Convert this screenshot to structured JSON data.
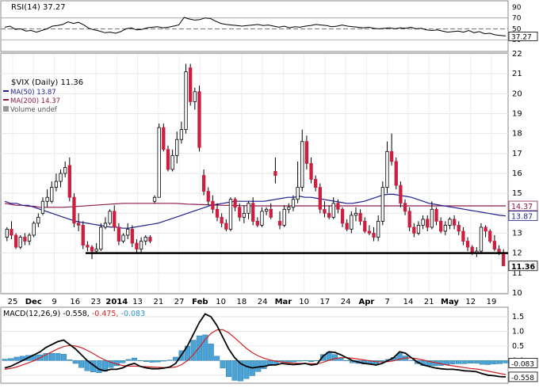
{
  "chart_data": [
    {
      "panel": "rsi",
      "type": "line",
      "label": "RSI(14) 37.27",
      "ticks": [
        "90",
        "70",
        "50",
        "30"
      ],
      "last_label": "37.27",
      "ylim": [
        10,
        100
      ],
      "levels": [
        70,
        50,
        30
      ],
      "values": [
        53,
        55,
        49,
        50,
        46,
        47,
        44,
        47,
        50,
        55,
        56,
        58,
        63,
        60,
        62,
        57,
        51,
        48,
        46,
        43,
        44,
        42,
        45,
        50,
        52,
        48,
        49,
        52,
        53,
        54,
        52,
        53,
        55,
        57,
        71,
        68,
        66,
        67,
        70,
        69,
        64,
        60,
        58,
        57,
        56,
        55,
        56,
        57,
        58,
        56,
        57,
        55,
        53,
        55,
        52,
        54,
        53,
        55,
        56,
        58,
        57,
        56,
        54,
        55,
        57,
        55,
        54,
        53,
        52,
        53,
        51,
        50,
        51,
        52,
        50,
        52,
        51,
        53,
        50,
        51,
        48,
        47,
        48,
        46,
        44,
        45,
        46,
        44,
        47,
        43,
        45,
        41,
        42,
        39,
        38,
        37
      ]
    },
    {
      "panel": "price",
      "type": "candlestick",
      "title": "$VIX (Daily) 11.36",
      "legend": [
        {
          "name": "MA(50) 13.87",
          "color": "#1f1f8f"
        },
        {
          "name": "MA(200) 14.37",
          "color": "#8b1a4a"
        },
        {
          "name": "Volume undef",
          "color": "#888888"
        }
      ],
      "y_ticks": [
        "10",
        "11",
        "12",
        "13",
        "14",
        "15",
        "16",
        "17",
        "18",
        "19",
        "20",
        "21",
        "22"
      ],
      "x_tick_labels": [
        "25",
        "Dec",
        "9",
        "16",
        "23",
        "2014",
        "13",
        "21",
        "27",
        "Feb",
        "10",
        "18",
        "24",
        "Mar",
        "10",
        "17",
        "24",
        "Apr",
        "7",
        "14",
        "21",
        "May",
        "12",
        "19"
      ],
      "ylim": [
        10,
        22
      ],
      "support_level": 12,
      "price_labels": [
        {
          "text": "14.37",
          "value": 14.37,
          "color": "#8b1a4a"
        },
        {
          "text": "13.87",
          "value": 13.87,
          "color": "#1f1f8f"
        },
        {
          "text": "11.36",
          "value": 11.36,
          "color": "#000000"
        }
      ],
      "ohlc": [
        [
          12.8,
          13.3,
          12.6,
          13.2
        ],
        [
          13.2,
          13.6,
          12.7,
          12.9
        ],
        [
          12.9,
          13.0,
          12.2,
          12.3
        ],
        [
          12.3,
          12.9,
          12.2,
          12.8
        ],
        [
          12.8,
          13.0,
          12.4,
          12.6
        ],
        [
          12.6,
          13.0,
          12.4,
          12.9
        ],
        [
          12.9,
          13.6,
          12.8,
          13.5
        ],
        [
          13.5,
          14.0,
          13.3,
          13.8
        ],
        [
          14.0,
          14.8,
          13.9,
          14.6
        ],
        [
          14.6,
          15.2,
          14.3,
          14.8
        ],
        [
          14.6,
          15.6,
          14.5,
          15.3
        ],
        [
          15.3,
          16.0,
          15.1,
          15.6
        ],
        [
          15.6,
          16.2,
          15.3,
          16.0
        ],
        [
          16.0,
          16.6,
          15.8,
          16.3
        ],
        [
          16.4,
          16.8,
          14.6,
          14.8
        ],
        [
          14.8,
          15.0,
          13.3,
          13.5
        ],
        [
          13.5,
          14.0,
          13.1,
          13.4
        ],
        [
          13.4,
          13.6,
          12.2,
          12.4
        ],
        [
          12.4,
          12.6,
          12.1,
          12.3
        ],
        [
          12.3,
          12.4,
          11.7,
          12.1
        ],
        [
          12.1,
          12.5,
          12.0,
          12.2
        ],
        [
          12.2,
          13.5,
          12.1,
          13.3
        ],
        [
          13.3,
          13.8,
          13.2,
          13.5
        ],
        [
          13.5,
          14.2,
          13.4,
          14.1
        ],
        [
          14.1,
          14.4,
          13.1,
          13.3
        ],
        [
          13.3,
          13.5,
          12.4,
          12.6
        ],
        [
          12.6,
          13.0,
          12.5,
          12.9
        ],
        [
          12.9,
          13.5,
          12.7,
          13.2
        ],
        [
          13.2,
          13.4,
          12.3,
          12.5
        ],
        [
          12.5,
          12.7,
          12.0,
          12.2
        ],
        [
          12.2,
          12.8,
          12.0,
          12.6
        ],
        [
          12.6,
          12.9,
          12.4,
          12.8
        ],
        [
          12.8,
          12.9,
          12.5,
          12.6
        ],
        [
          14.6,
          14.9,
          14.5,
          14.8
        ],
        [
          14.8,
          18.5,
          14.8,
          18.3
        ],
        [
          18.3,
          18.5,
          17.1,
          17.2
        ],
        [
          17.2,
          17.4,
          16.1,
          16.2
        ],
        [
          16.2,
          17.2,
          16.1,
          16.9
        ],
        [
          16.9,
          18.1,
          16.5,
          17.7
        ],
        [
          17.7,
          18.6,
          17.5,
          18.2
        ],
        [
          18.2,
          21.5,
          18.0,
          21.1
        ],
        [
          21.3,
          21.5,
          19.4,
          19.6
        ],
        [
          19.6,
          20.3,
          19.2,
          20.1
        ],
        [
          20.1,
          20.4,
          17.1,
          17.3
        ],
        [
          15.9,
          16.2,
          14.9,
          15.1
        ],
        [
          15.1,
          15.3,
          14.4,
          14.6
        ],
        [
          14.6,
          14.9,
          14.0,
          14.2
        ],
        [
          14.2,
          14.5,
          13.6,
          13.8
        ],
        [
          13.8,
          14.0,
          13.3,
          13.5
        ],
        [
          13.5,
          13.7,
          13.1,
          13.2
        ],
        [
          13.2,
          14.8,
          13.1,
          14.7
        ],
        [
          14.7,
          14.8,
          14.1,
          14.3
        ],
        [
          14.3,
          14.5,
          13.6,
          13.8
        ],
        [
          13.8,
          14.4,
          13.5,
          14.0
        ],
        [
          14.0,
          14.6,
          13.7,
          14.5
        ],
        [
          14.5,
          14.8,
          13.4,
          13.6
        ],
        [
          13.6,
          13.8,
          13.3,
          13.4
        ],
        [
          13.4,
          14.3,
          13.3,
          14.1
        ],
        [
          14.1,
          14.3,
          13.9,
          14.2
        ],
        [
          14.2,
          14.5,
          13.7,
          13.8
        ],
        [
          16.1,
          16.8,
          15.5,
          15.9
        ],
        [
          13.6,
          14.1,
          13.2,
          13.4
        ],
        [
          13.4,
          14.4,
          13.3,
          14.2
        ],
        [
          14.2,
          14.5,
          14.0,
          14.3
        ],
        [
          14.3,
          14.9,
          14.1,
          14.7
        ],
        [
          14.7,
          16.6,
          14.5,
          15.3
        ],
        [
          15.3,
          18.2,
          15.1,
          17.6
        ],
        [
          17.6,
          17.9,
          16.2,
          16.5
        ],
        [
          16.5,
          16.8,
          15.5,
          15.7
        ],
        [
          15.7,
          15.9,
          15.1,
          15.3
        ],
        [
          15.3,
          15.5,
          14.0,
          14.2
        ],
        [
          14.2,
          14.6,
          13.8,
          14.0
        ],
        [
          14.0,
          14.4,
          13.7,
          13.8
        ],
        [
          13.8,
          14.8,
          13.7,
          14.5
        ],
        [
          14.5,
          14.7,
          14.0,
          14.2
        ],
        [
          14.2,
          14.3,
          13.3,
          13.5
        ],
        [
          13.5,
          13.7,
          13.1,
          13.2
        ],
        [
          13.2,
          14.1,
          13.0,
          13.9
        ],
        [
          13.9,
          14.3,
          13.6,
          14.0
        ],
        [
          14.0,
          14.2,
          13.4,
          13.6
        ],
        [
          13.6,
          13.8,
          13.0,
          13.1
        ],
        [
          13.1,
          13.4,
          12.9,
          13.0
        ],
        [
          13.0,
          13.3,
          12.6,
          12.8
        ],
        [
          12.8,
          13.9,
          12.6,
          13.6
        ],
        [
          13.6,
          15.6,
          13.4,
          15.3
        ],
        [
          15.3,
          17.6,
          15.0,
          17.1
        ],
        [
          17.1,
          18.0,
          16.4,
          16.6
        ],
        [
          16.6,
          16.8,
          15.2,
          15.4
        ],
        [
          15.4,
          15.6,
          14.3,
          14.5
        ],
        [
          14.5,
          14.7,
          13.9,
          14.1
        ],
        [
          14.1,
          14.3,
          13.1,
          13.3
        ],
        [
          13.3,
          13.5,
          12.8,
          13.0
        ],
        [
          13.0,
          13.6,
          12.9,
          13.4
        ],
        [
          13.4,
          13.9,
          13.2,
          13.7
        ],
        [
          13.7,
          13.9,
          13.1,
          13.3
        ],
        [
          13.3,
          14.6,
          13.2,
          14.2
        ],
        [
          14.2,
          14.3,
          13.4,
          13.6
        ],
        [
          13.6,
          13.8,
          13.0,
          13.1
        ],
        [
          13.1,
          13.6,
          12.9,
          13.4
        ],
        [
          13.4,
          13.8,
          13.2,
          13.7
        ],
        [
          13.7,
          13.9,
          13.2,
          13.4
        ],
        [
          13.4,
          13.6,
          12.9,
          13.1
        ],
        [
          13.1,
          13.3,
          12.4,
          12.6
        ],
        [
          12.6,
          12.8,
          12.1,
          12.3
        ],
        [
          12.3,
          12.4,
          11.9,
          12.0
        ],
        [
          12.0,
          12.3,
          11.8,
          12.1
        ],
        [
          12.1,
          13.5,
          12.0,
          13.3
        ],
        [
          13.3,
          13.4,
          12.8,
          13.1
        ],
        [
          13.1,
          13.2,
          12.5,
          12.6
        ],
        [
          12.6,
          12.9,
          12.1,
          12.2
        ],
        [
          12.2,
          12.4,
          11.9,
          12.0
        ],
        [
          12.0,
          12.2,
          11.4,
          11.36
        ]
      ],
      "ma50": [
        14.6,
        14.5,
        14.5,
        14.4,
        14.4,
        14.3,
        14.2,
        14.1,
        14.0,
        13.9,
        13.8,
        13.7,
        13.6,
        13.55,
        13.5,
        13.45,
        13.4,
        13.35,
        13.3,
        13.3,
        13.25,
        13.25,
        13.3,
        13.35,
        13.4,
        13.45,
        13.5,
        13.6,
        13.7,
        13.8,
        13.9,
        14.0,
        14.1,
        14.2,
        14.3,
        14.4,
        14.45,
        14.5,
        14.55,
        14.6,
        14.6,
        14.6,
        14.6,
        14.6,
        14.6,
        14.65,
        14.7,
        14.75,
        14.8,
        14.8,
        14.85,
        14.8,
        14.8,
        14.75,
        14.7,
        14.65,
        14.6,
        14.55,
        14.5,
        14.5,
        14.55,
        14.6,
        14.7,
        14.8,
        14.9,
        14.95,
        14.95,
        14.9,
        14.85,
        14.8,
        14.7,
        14.6,
        14.5,
        14.45,
        14.4,
        14.35,
        14.3,
        14.25,
        14.2,
        14.15,
        14.1,
        14.05,
        14.0,
        13.95,
        13.9,
        13.87
      ],
      "ma200": [
        14.5,
        14.45,
        14.4,
        14.4,
        14.35,
        14.35,
        14.3,
        14.3,
        14.3,
        14.3,
        14.3,
        14.32,
        14.34,
        14.36,
        14.38,
        14.4,
        14.42,
        14.44,
        14.46,
        14.48,
        14.5,
        14.5,
        14.5,
        14.5,
        14.5,
        14.5,
        14.5,
        14.5,
        14.5,
        14.5,
        14.48,
        14.46,
        14.45,
        14.44,
        14.43,
        14.42,
        14.41,
        14.4,
        14.4,
        14.39,
        14.38,
        14.38,
        14.37,
        14.37,
        14.37,
        14.37,
        14.37,
        14.37,
        14.37,
        14.37,
        14.37,
        14.37,
        14.37,
        14.37,
        14.37,
        14.37,
        14.37,
        14.37,
        14.37,
        14.37,
        14.37,
        14.37,
        14.37,
        14.37,
        14.37,
        14.37,
        14.37,
        14.37,
        14.37,
        14.37,
        14.37,
        14.37,
        14.37,
        14.37,
        14.37,
        14.37,
        14.37,
        14.37,
        14.37,
        14.37,
        14.37,
        14.37,
        14.37,
        14.37,
        14.37,
        14.37
      ]
    },
    {
      "panel": "macd",
      "type": "line",
      "label_prefix": "MACD(12,26,9) -0.558, ",
      "label_signal": "-0.475, ",
      "label_hist": "-0.083",
      "ticks": [
        "1.5",
        "1.0",
        "0.5",
        "0.0",
        "-0.5"
      ],
      "price_labels": [
        {
          "text": "-0.083",
          "value": -0.083
        },
        {
          "text": "-0.558",
          "value": -0.558
        }
      ],
      "ylim": [
        -0.75,
        1.8
      ],
      "macd": [
        -0.25,
        -0.2,
        -0.1,
        0.0,
        0.1,
        0.2,
        0.3,
        0.45,
        0.55,
        0.65,
        0.7,
        0.55,
        0.4,
        0.2,
        0.0,
        -0.15,
        -0.3,
        -0.35,
        -0.3,
        -0.3,
        -0.25,
        -0.15,
        -0.1,
        -0.2,
        -0.25,
        -0.28,
        -0.28,
        -0.26,
        -0.22,
        -0.1,
        0.2,
        0.5,
        0.9,
        1.3,
        1.6,
        1.5,
        1.2,
        0.8,
        0.4,
        0.1,
        -0.1,
        -0.2,
        -0.25,
        -0.22,
        -0.2,
        -0.15,
        -0.15,
        -0.1,
        -0.12,
        -0.14,
        -0.12,
        -0.1,
        -0.15,
        -0.12,
        0.15,
        0.3,
        0.28,
        0.2,
        0.1,
        0.0,
        -0.05,
        -0.1,
        -0.12,
        -0.15,
        -0.1,
        0.0,
        0.1,
        0.3,
        0.25,
        0.1,
        -0.05,
        -0.15,
        -0.2,
        -0.25,
        -0.28,
        -0.3,
        -0.3,
        -0.32,
        -0.35,
        -0.36,
        -0.38,
        -0.45,
        -0.5,
        -0.52,
        -0.55,
        -0.56
      ],
      "signal": [
        -0.3,
        -0.27,
        -0.22,
        -0.15,
        -0.08,
        0.0,
        0.1,
        0.2,
        0.3,
        0.4,
        0.48,
        0.52,
        0.5,
        0.44,
        0.35,
        0.24,
        0.12,
        0.02,
        -0.06,
        -0.12,
        -0.17,
        -0.19,
        -0.19,
        -0.2,
        -0.21,
        -0.22,
        -0.23,
        -0.24,
        -0.24,
        -0.22,
        -0.14,
        0.0,
        0.2,
        0.45,
        0.72,
        0.93,
        1.05,
        1.06,
        0.95,
        0.78,
        0.6,
        0.42,
        0.27,
        0.16,
        0.08,
        0.02,
        -0.02,
        -0.05,
        -0.07,
        -0.09,
        -0.1,
        -0.1,
        -0.11,
        -0.11,
        -0.06,
        0.01,
        0.07,
        0.1,
        0.1,
        0.08,
        0.05,
        0.02,
        -0.01,
        -0.04,
        -0.05,
        -0.04,
        -0.01,
        0.05,
        0.09,
        0.09,
        0.06,
        0.02,
        -0.03,
        -0.07,
        -0.11,
        -0.15,
        -0.18,
        -0.21,
        -0.24,
        -0.27,
        -0.29,
        -0.32,
        -0.36,
        -0.4,
        -0.44,
        -0.475
      ]
    }
  ]
}
